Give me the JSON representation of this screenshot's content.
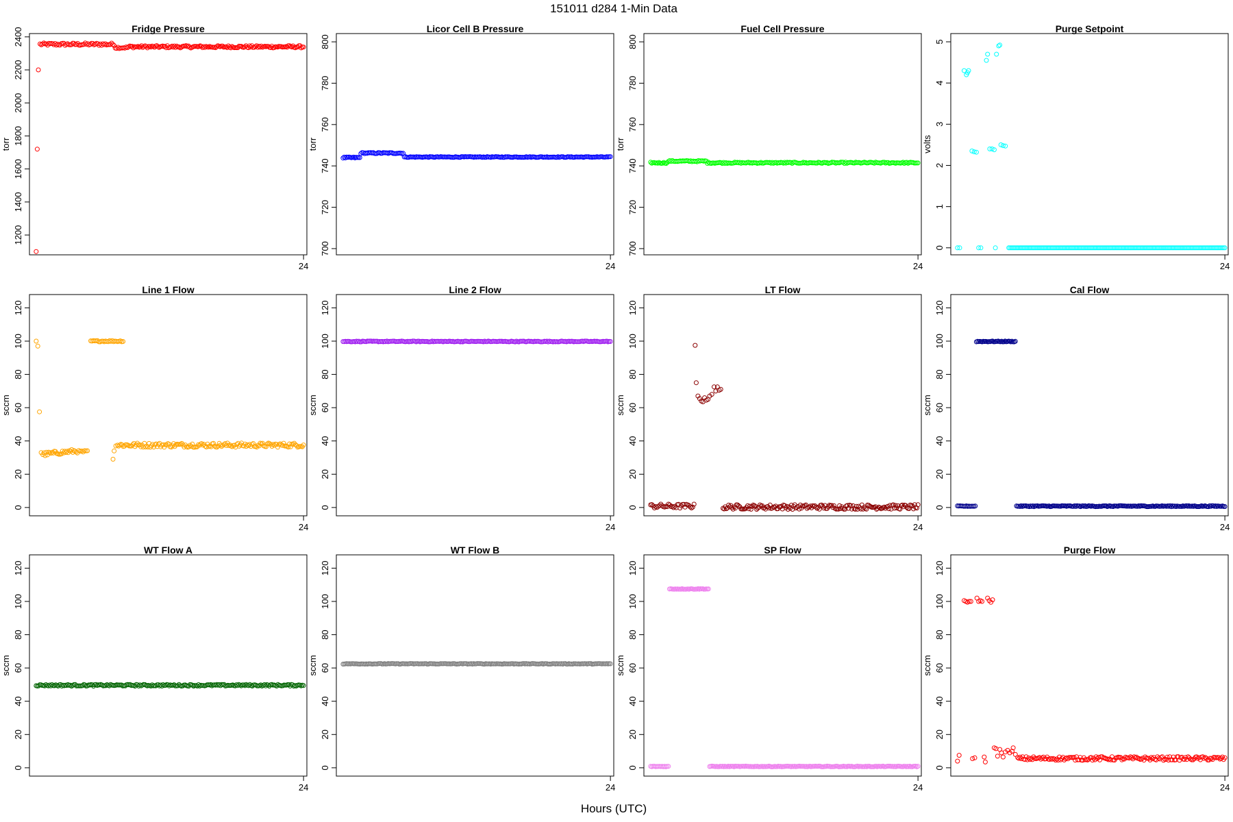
{
  "figure": {
    "title": "151011    d284    1-Min Data",
    "xlabel": "Hours (UTC)"
  },
  "chart_data": [
    {
      "type": "scatter",
      "title": "Fridge Pressure",
      "ylabel": "torr",
      "color": "#ff0000",
      "ylim": [
        1080,
        2420
      ],
      "yticks": [
        1200,
        1400,
        1600,
        1800,
        2000,
        2200,
        2400
      ],
      "xlim": [
        -0.6,
        24.3
      ],
      "xticks": [
        24
      ],
      "series": [
        {
          "segments": [
            {
              "x0": 0,
              "x1": 0,
              "n": 1,
              "y": 1100
            },
            {
              "x0": 0.1,
              "x1": 0.1,
              "n": 1,
              "y": 1720
            },
            {
              "x0": 0.2,
              "x1": 0.2,
              "n": 1,
              "y": 2200
            },
            {
              "x0": 0.35,
              "x1": 7.0,
              "n": 60,
              "y": 2355,
              "amp": 8
            },
            {
              "x0": 7.1,
              "x1": 8.2,
              "n": 10,
              "y": 2335,
              "amp": 6
            },
            {
              "x0": 8.3,
              "x1": 24.0,
              "n": 150,
              "y": 2340,
              "amp": 7
            }
          ]
        }
      ]
    },
    {
      "type": "scatter",
      "title": "Licor Cell B Pressure",
      "ylabel": "torr",
      "color": "#0000ff",
      "ylim": [
        697,
        804
      ],
      "yticks": [
        700,
        720,
        740,
        760,
        780,
        800
      ],
      "xlim": [
        -0.6,
        24.3
      ],
      "xticks": [
        24
      ],
      "series": [
        {
          "segments": [
            {
              "x0": 0,
              "x1": 1.5,
              "n": 15,
              "y": 744,
              "amp": 0.3
            },
            {
              "x0": 1.6,
              "x1": 5.4,
              "n": 35,
              "y": 746.2,
              "amp": 0.3
            },
            {
              "x0": 5.5,
              "x1": 24.0,
              "n": 170,
              "y": 744.3,
              "amp": 0.2
            }
          ]
        }
      ]
    },
    {
      "type": "scatter",
      "title": "Fuel Cell Pressure",
      "ylabel": "torr",
      "color": "#00ff00",
      "ylim": [
        697,
        804
      ],
      "yticks": [
        700,
        720,
        740,
        760,
        780,
        800
      ],
      "xlim": [
        -0.6,
        24.3
      ],
      "xticks": [
        24
      ],
      "series": [
        {
          "segments": [
            {
              "x0": 0,
              "x1": 1.5,
              "n": 15,
              "y": 741.5,
              "amp": 0.3
            },
            {
              "x0": 1.6,
              "x1": 5.0,
              "n": 30,
              "y": 742.3,
              "amp": 0.3
            },
            {
              "x0": 5.1,
              "x1": 24.0,
              "n": 170,
              "y": 741.5,
              "amp": 0.3
            }
          ]
        }
      ]
    },
    {
      "type": "scatter",
      "title": "Purge Setpoint",
      "ylabel": "volts",
      "color": "#00ffff",
      "ylim": [
        -0.17,
        5.2
      ],
      "yticks": [
        0,
        1,
        2,
        3,
        4,
        5
      ],
      "xlim": [
        -0.6,
        24.3
      ],
      "xticks": [
        24
      ],
      "series": [
        {
          "points": [
            [
              0.6,
              4.3
            ],
            [
              0.8,
              4.2
            ],
            [
              0.9,
              4.25
            ],
            [
              1.0,
              4.3
            ],
            [
              1.3,
              2.35
            ],
            [
              1.5,
              2.33
            ],
            [
              1.7,
              2.32
            ],
            [
              2.6,
              4.55
            ],
            [
              2.7,
              4.7
            ],
            [
              3.5,
              4.7
            ],
            [
              3.7,
              4.9
            ],
            [
              3.8,
              4.92
            ],
            [
              2.9,
              2.4
            ],
            [
              3.1,
              2.4
            ],
            [
              3.3,
              2.38
            ],
            [
              3.9,
              2.5
            ],
            [
              4.1,
              2.48
            ],
            [
              4.3,
              2.47
            ],
            [
              0.0,
              0.0
            ],
            [
              0.2,
              0.0
            ],
            [
              1.9,
              0.0
            ],
            [
              2.1,
              0.0
            ],
            [
              3.4,
              0.0
            ]
          ],
          "segments": [
            {
              "x0": 4.6,
              "x1": 24.0,
              "n": 170,
              "y": 0.0,
              "amp": 0
            }
          ]
        }
      ]
    },
    {
      "type": "scatter",
      "title": "Line 1 Flow",
      "ylabel": "sccm",
      "color": "#ffa500",
      "ylim": [
        -5,
        128
      ],
      "yticks": [
        0,
        20,
        40,
        60,
        80,
        100,
        120
      ],
      "xlim": [
        -0.6,
        24.3
      ],
      "xticks": [
        24
      ],
      "series": [
        {
          "points": [
            [
              0.0,
              100
            ],
            [
              0.15,
              97
            ],
            [
              0.3,
              57.5
            ],
            [
              0.45,
              33
            ],
            [
              6.9,
              29
            ],
            [
              7.0,
              34
            ],
            [
              7.15,
              37
            ]
          ],
          "segments": [
            {
              "x0": 0.6,
              "x1": 3.6,
              "n": 30,
              "y": 32,
              "amp": 1.2,
              "slope": 2
            },
            {
              "x0": 3.7,
              "x1": 4.6,
              "n": 8,
              "y": 33.5,
              "amp": 0.8
            },
            {
              "x0": 4.9,
              "x1": 7.8,
              "n": 25,
              "y": 100,
              "amp": 0.4
            },
            {
              "x0": 7.3,
              "x1": 24.0,
              "n": 160,
              "y": 37.5,
              "amp": 1.3
            }
          ]
        }
      ]
    },
    {
      "type": "scatter",
      "title": "Line 2 Flow",
      "ylabel": "sccm",
      "color": "#a020f0",
      "ylim": [
        -5,
        128
      ],
      "yticks": [
        0,
        20,
        40,
        60,
        80,
        100,
        120
      ],
      "xlim": [
        -0.6,
        24.3
      ],
      "xticks": [
        24
      ],
      "series": [
        {
          "segments": [
            {
              "x0": 0,
              "x1": 24.0,
              "n": 220,
              "y": 99.8,
              "amp": 0.25
            }
          ]
        }
      ]
    },
    {
      "type": "scatter",
      "title": "LT Flow",
      "ylabel": "sccm",
      "color": "#8b0000",
      "ylim": [
        -5,
        128
      ],
      "yticks": [
        0,
        20,
        40,
        60,
        80,
        100,
        120
      ],
      "xlim": [
        -0.6,
        24.3
      ],
      "xticks": [
        24
      ],
      "series": [
        {
          "points": [
            [
              4.0,
              97.5
            ],
            [
              4.1,
              75
            ],
            [
              4.25,
              67
            ],
            [
              4.4,
              65.5
            ],
            [
              4.55,
              64
            ],
            [
              4.7,
              63.5
            ],
            [
              4.85,
              66
            ],
            [
              5.0,
              64.5
            ],
            [
              5.15,
              65
            ],
            [
              5.3,
              67
            ],
            [
              5.5,
              68
            ],
            [
              5.7,
              72.5
            ],
            [
              5.85,
              70
            ],
            [
              6.0,
              72.5
            ],
            [
              6.15,
              70.5
            ],
            [
              6.3,
              71
            ]
          ],
          "segments": [
            {
              "x0": 0,
              "x1": 3.9,
              "n": 35,
              "y": 0.8,
              "amp": 1.3
            },
            {
              "x0": 6.5,
              "x1": 24.0,
              "n": 175,
              "y": 0.3,
              "amp": 1.4
            }
          ]
        }
      ]
    },
    {
      "type": "scatter",
      "title": "Cal Flow",
      "ylabel": "sccm",
      "color": "#00008b",
      "ylim": [
        -5,
        128
      ],
      "yticks": [
        0,
        20,
        40,
        60,
        80,
        100,
        120
      ],
      "xlim": [
        -0.6,
        24.3
      ],
      "xticks": [
        24
      ],
      "series": [
        {
          "segments": [
            {
              "x0": 0,
              "x1": 1.6,
              "n": 15,
              "y": 0.8,
              "amp": 0.2
            },
            {
              "x0": 1.7,
              "x1": 5.2,
              "n": 35,
              "y": 99.8,
              "amp": 0.25
            },
            {
              "x0": 5.3,
              "x1": 24.0,
              "n": 180,
              "y": 0.8,
              "amp": 0.3
            }
          ]
        }
      ]
    },
    {
      "type": "scatter",
      "title": "WT Flow A",
      "ylabel": "sccm",
      "color": "#006400",
      "ylim": [
        -5,
        128
      ],
      "yticks": [
        0,
        20,
        40,
        60,
        80,
        100,
        120
      ],
      "xlim": [
        -0.6,
        24.3
      ],
      "xticks": [
        24
      ],
      "series": [
        {
          "segments": [
            {
              "x0": 0,
              "x1": 24.0,
              "n": 220,
              "y": 49.6,
              "amp": 0.5
            }
          ]
        }
      ]
    },
    {
      "type": "scatter",
      "title": "WT Flow B",
      "ylabel": "sccm",
      "color": "#7f7f7f",
      "ylim": [
        -5,
        128
      ],
      "yticks": [
        0,
        20,
        40,
        60,
        80,
        100,
        120
      ],
      "xlim": [
        -0.6,
        24.3
      ],
      "xticks": [
        24
      ],
      "series": [
        {
          "segments": [
            {
              "x0": 0,
              "x1": 24.0,
              "n": 220,
              "y": 62.5,
              "amp": 0.2
            }
          ]
        }
      ]
    },
    {
      "type": "scatter",
      "title": "SP Flow",
      "ylabel": "sccm",
      "color": "#ee82ee",
      "ylim": [
        -5,
        128
      ],
      "yticks": [
        0,
        20,
        40,
        60,
        80,
        100,
        120
      ],
      "xlim": [
        -0.6,
        24.3
      ],
      "xticks": [
        24
      ],
      "series": [
        {
          "segments": [
            {
              "x0": 0,
              "x1": 1.6,
              "n": 15,
              "y": 0.8,
              "amp": 0.2
            },
            {
              "x0": 1.7,
              "x1": 5.2,
              "n": 35,
              "y": 107.5,
              "amp": 0.2
            },
            {
              "x0": 5.3,
              "x1": 24.0,
              "n": 180,
              "y": 0.8,
              "amp": 0.2
            }
          ]
        }
      ]
    },
    {
      "type": "scatter",
      "title": "Purge Flow",
      "ylabel": "sccm",
      "color": "#ff0000",
      "ylim": [
        -5,
        128
      ],
      "yticks": [
        0,
        20,
        40,
        60,
        80,
        100,
        120
      ],
      "xlim": [
        -0.6,
        24.3
      ],
      "xticks": [
        24
      ],
      "series": [
        {
          "points": [
            [
              0.0,
              4
            ],
            [
              0.15,
              7.5
            ],
            [
              0.6,
              100.5
            ],
            [
              0.75,
              100
            ],
            [
              0.9,
              99.5
            ],
            [
              1.05,
              100
            ],
            [
              1.2,
              100
            ],
            [
              1.35,
              5.5
            ],
            [
              1.55,
              6
            ],
            [
              1.75,
              102
            ],
            [
              1.9,
              100
            ],
            [
              2.05,
              100.5
            ],
            [
              2.2,
              100
            ],
            [
              2.4,
              6.5
            ],
            [
              2.5,
              3.5
            ],
            [
              2.7,
              102
            ],
            [
              2.85,
              100.5
            ],
            [
              3.0,
              99.5
            ],
            [
              3.15,
              101
            ],
            [
              3.3,
              12
            ],
            [
              3.45,
              11.5
            ],
            [
              3.6,
              7
            ],
            [
              3.8,
              11
            ],
            [
              3.95,
              9
            ],
            [
              4.1,
              6.5
            ],
            [
              4.3,
              9.5
            ],
            [
              4.5,
              10.5
            ],
            [
              4.7,
              9
            ],
            [
              4.9,
              10
            ],
            [
              5.0,
              12
            ],
            [
              5.2,
              8
            ]
          ],
          "segments": [
            {
              "x0": 5.4,
              "x1": 24.0,
              "n": 170,
              "y": 5.6,
              "amp": 1.1
            }
          ]
        }
      ]
    }
  ]
}
